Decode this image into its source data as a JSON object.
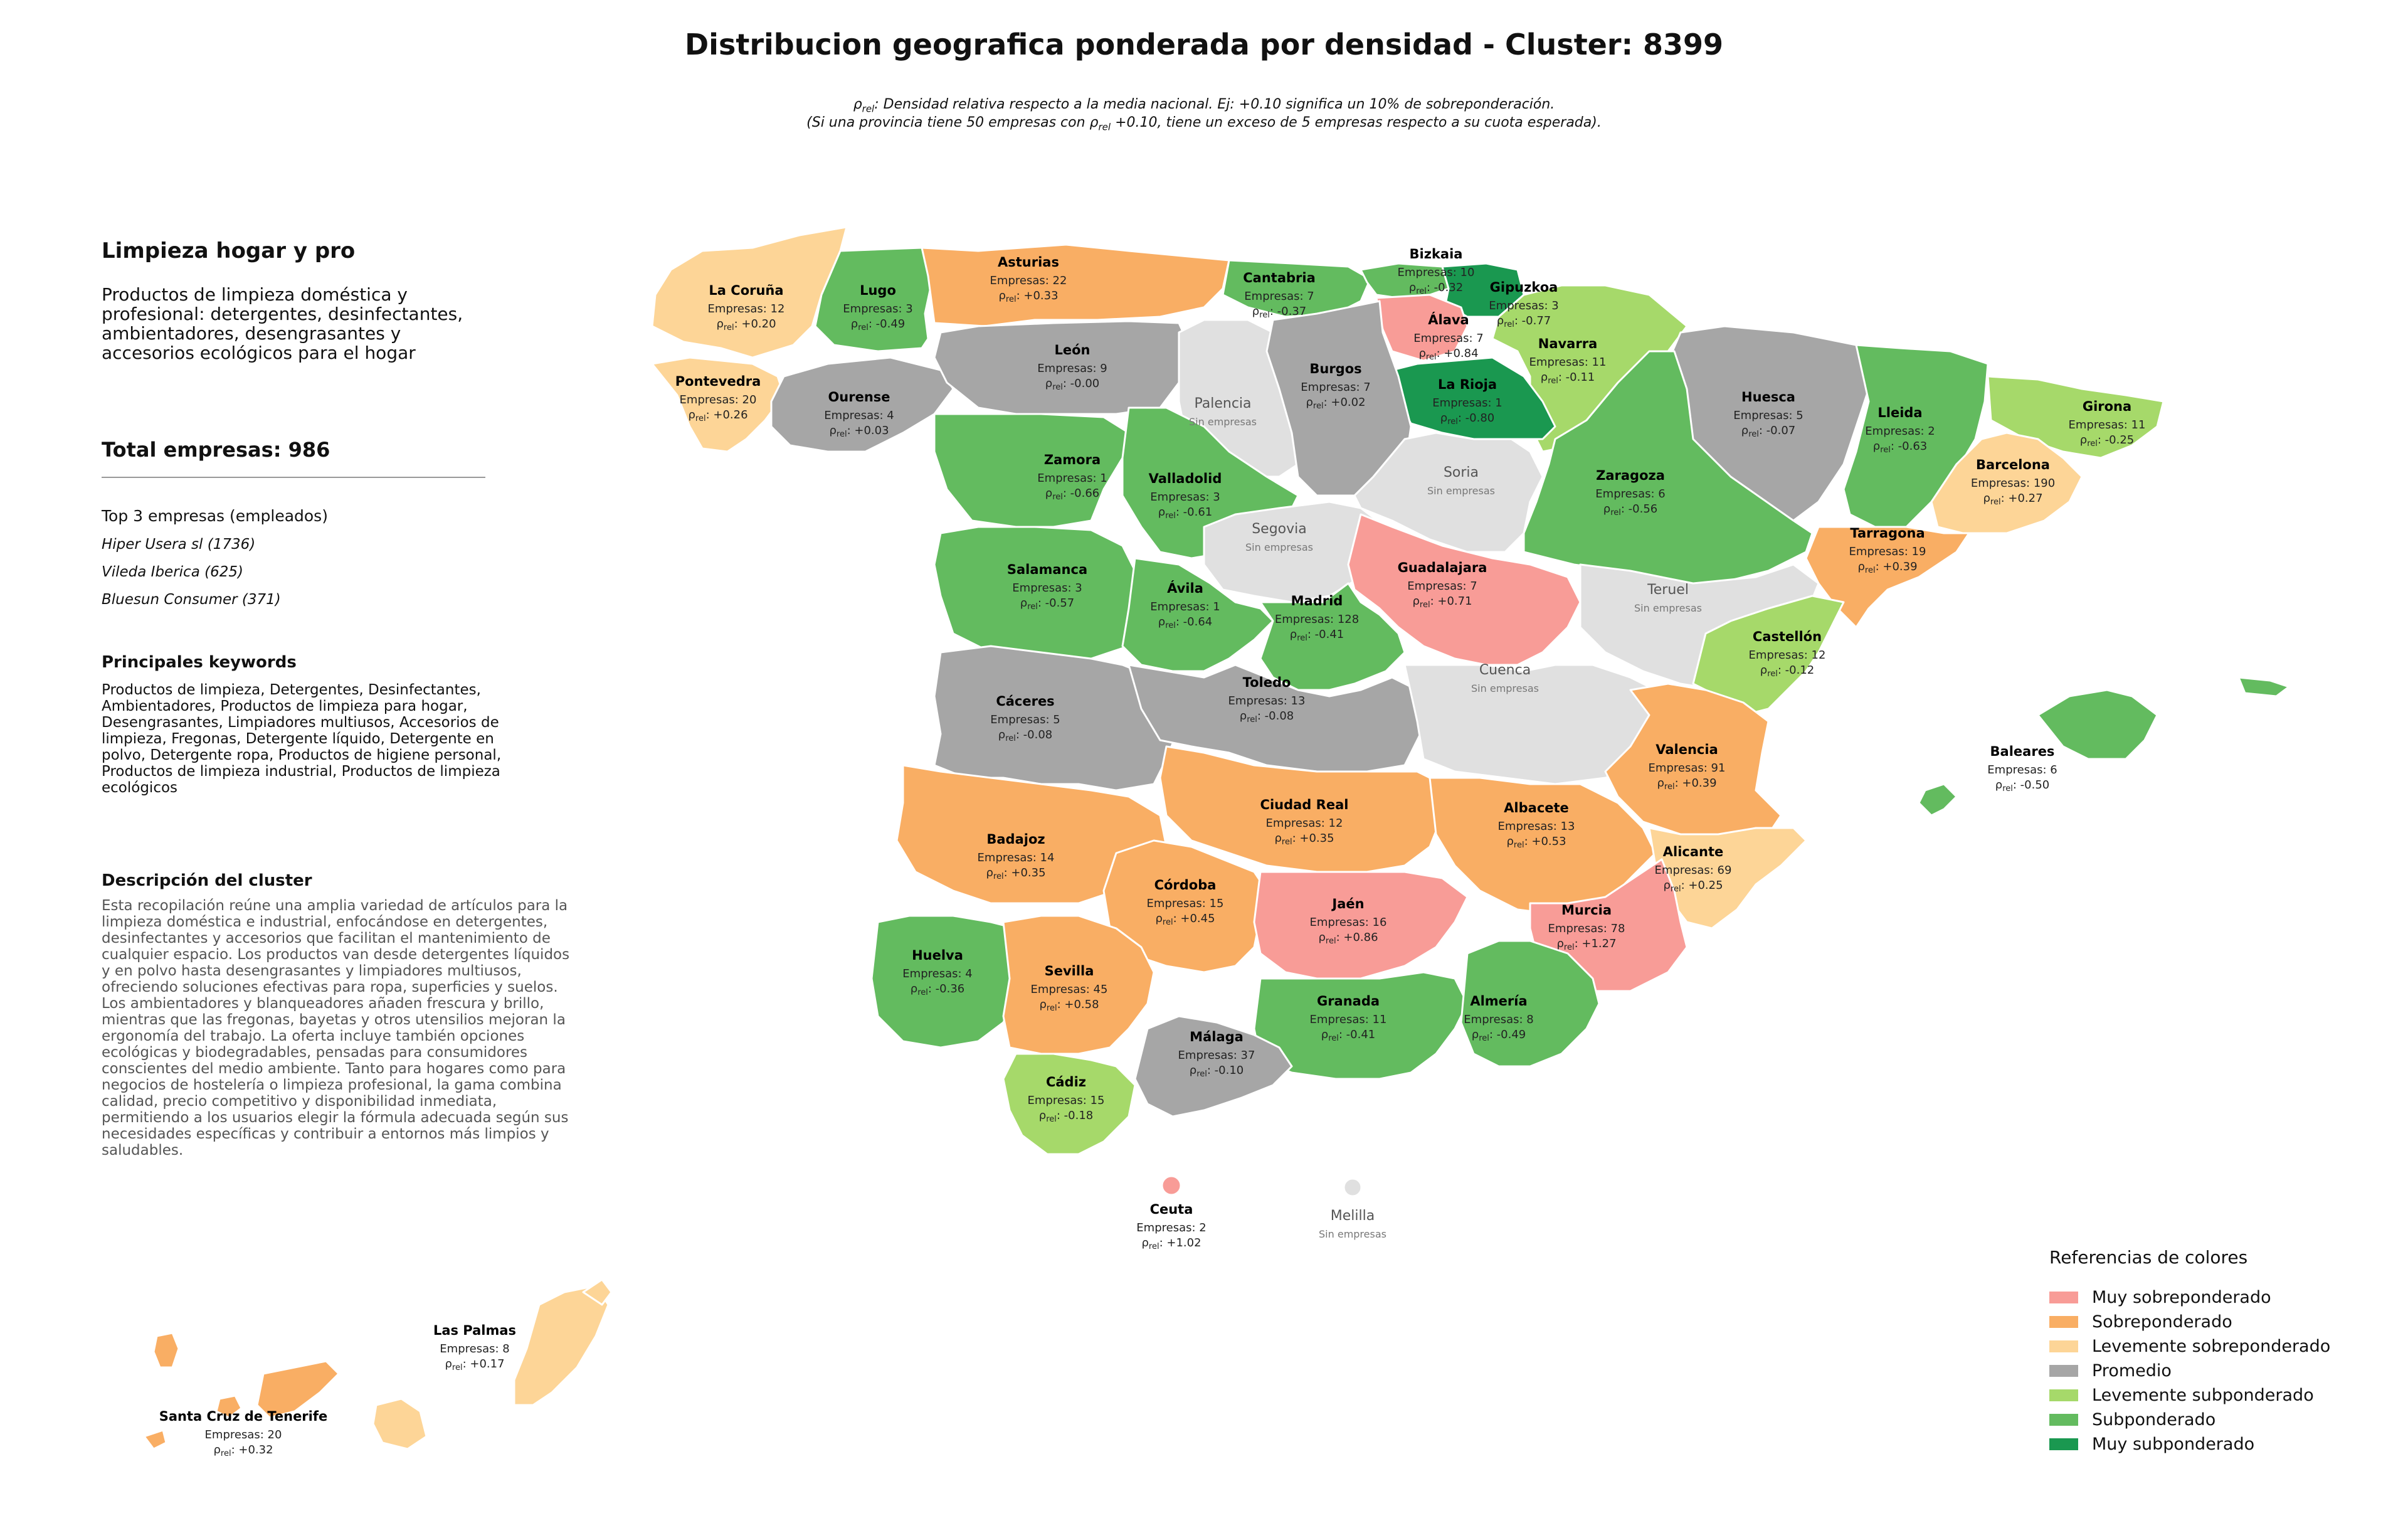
{
  "title": "Distribucion geografica ponderada por densidad - Cluster: 8399",
  "subtitle_line1": "ρrel: Densidad relativa respecto a la media nacional. Ej: +0.10 significa un 10% de sobreponderación.",
  "subtitle_line2": "(Si una provincia tiene 50 empresas con ρrel +0.10, tiene un exceso de 5 empresas respecto a su cuota esperada).",
  "panel": {
    "category_title": "Limpieza hogar y pro",
    "category_description": "Productos de limpieza doméstica y profesional: detergentes, desinfectantes, ambientadores, desengrasantes y accesorios ecológicos para el hogar",
    "total": "Total empresas: 986",
    "top_title": "Top 3 empresas (empleados)",
    "top_companies": [
      "Hiper Usera sl (1736)",
      "Vileda Iberica (625)",
      "Bluesun Consumer (371)"
    ],
    "keywords_title": "Principales keywords",
    "keywords": "Productos de limpieza, Detergentes, Desinfectantes, Ambientadores, Productos de limpieza para hogar, Desengrasantes, Limpiadores multiusos, Accesorios de limpieza, Fregonas, Detergente líquido, Detergente en polvo, Detergente ropa, Productos de higiene personal, Productos de limpieza industrial, Productos de limpieza ecológicos",
    "description_title": "Descripción del cluster",
    "description": "Esta recopilación reúne una amplia variedad de artículos para la limpieza doméstica e industrial, enfocándose en detergentes, desinfectantes y accesorios que facilitan el mantenimiento de cualquier espacio. Los productos van desde detergentes líquidos y en polvo hasta desengrasantes y limpiadores multiusos, ofreciendo soluciones efectivas para ropa, superficies y suelos. Los ambientadores y blanqueadores añaden frescura y brillo, mientras que las fregonas, bayetas y otros utensilios mejoran la ergonomía del trabajo. La oferta incluye también opciones ecológicas y biodegradables, pensadas para consumidores conscientes del medio ambiente. Tanto para hogares como para negocios de hostelería o limpieza profesional, la gama combina calidad, precio competitivo y disponibilidad inmediata, permitiendo a los usuarios elegir la fórmula adecuada según sus necesidades específicas y contribuir a entornos más limpios y saludables."
  },
  "colors": {
    "muy_sobre": "#f89c97",
    "sobre": "#f9ae64",
    "lev_sobre": "#fdd597",
    "promedio": "#a6a6a6",
    "lev_sub": "#a6d96a",
    "sub": "#63bb5f",
    "muy_sub": "#1a9850",
    "sin": "#e0e0e0"
  },
  "provinces": [
    {
      "name": "La Coruña",
      "companies": "Empresas: 12",
      "rho": "+0.20",
      "level": "lev_sobre"
    },
    {
      "name": "Lugo",
      "companies": "Empresas: 3",
      "rho": "-0.49",
      "level": "sub"
    },
    {
      "name": "Asturias",
      "companies": "Empresas: 22",
      "rho": "+0.33",
      "level": "sobre"
    },
    {
      "name": "Cantabria",
      "companies": "Empresas: 7",
      "rho": "-0.37",
      "level": "sub"
    },
    {
      "name": "Bizkaia",
      "companies": "Empresas: 10",
      "rho": "-0.32",
      "level": "sub"
    },
    {
      "name": "Gipuzkoa",
      "companies": "Empresas: 3",
      "rho": "-0.77",
      "level": "muy_sub"
    },
    {
      "name": "Álava",
      "companies": "Empresas: 7",
      "rho": "+0.84",
      "level": "muy_sobre"
    },
    {
      "name": "Navarra",
      "companies": "Empresas: 11",
      "rho": "-0.11",
      "level": "lev_sub"
    },
    {
      "name": "La Rioja",
      "companies": "Empresas: 1",
      "rho": "-0.80",
      "level": "muy_sub"
    },
    {
      "name": "Pontevedra",
      "companies": "Empresas: 20",
      "rho": "+0.26",
      "level": "lev_sobre"
    },
    {
      "name": "Ourense",
      "companies": "Empresas: 4",
      "rho": "+0.03",
      "level": "promedio"
    },
    {
      "name": "León",
      "companies": "Empresas: 9",
      "rho": "-0.00",
      "level": "promedio"
    },
    {
      "name": "Palencia",
      "companies": "Sin empresas",
      "rho": "",
      "level": "sin"
    },
    {
      "name": "Burgos",
      "companies": "Empresas: 7",
      "rho": "+0.02",
      "level": "promedio"
    },
    {
      "name": "Huesca",
      "companies": "Empresas: 5",
      "rho": "-0.07",
      "level": "promedio"
    },
    {
      "name": "Lleida",
      "companies": "Empresas: 2",
      "rho": "-0.63",
      "level": "sub"
    },
    {
      "name": "Girona",
      "companies": "Empresas: 11",
      "rho": "-0.25",
      "level": "lev_sub"
    },
    {
      "name": "Zamora",
      "companies": "Empresas: 1",
      "rho": "-0.66",
      "level": "sub"
    },
    {
      "name": "Valladolid",
      "companies": "Empresas: 3",
      "rho": "-0.61",
      "level": "sub"
    },
    {
      "name": "Soria",
      "companies": "Sin empresas",
      "rho": "",
      "level": "sin"
    },
    {
      "name": "Zaragoza",
      "companies": "Empresas: 6",
      "rho": "-0.56",
      "level": "sub"
    },
    {
      "name": "Barcelona",
      "companies": "Empresas: 190",
      "rho": "+0.27",
      "level": "lev_sobre"
    },
    {
      "name": "Segovia",
      "companies": "Sin empresas",
      "rho": "",
      "level": "sin"
    },
    {
      "name": "Salamanca",
      "companies": "Empresas: 3",
      "rho": "-0.57",
      "level": "sub"
    },
    {
      "name": "Tarragona",
      "companies": "Empresas: 19",
      "rho": "+0.39",
      "level": "sobre"
    },
    {
      "name": "Guadalajara",
      "companies": "Empresas: 7",
      "rho": "+0.71",
      "level": "muy_sobre"
    },
    {
      "name": "Teruel",
      "companies": "Sin empresas",
      "rho": "",
      "level": "sin"
    },
    {
      "name": "Ávila",
      "companies": "Empresas: 1",
      "rho": "-0.64",
      "level": "sub"
    },
    {
      "name": "Madrid",
      "companies": "Empresas: 128",
      "rho": "-0.41",
      "level": "sub"
    },
    {
      "name": "Castellón",
      "companies": "Empresas: 12",
      "rho": "-0.12",
      "level": "lev_sub"
    },
    {
      "name": "Cáceres",
      "companies": "Empresas: 5",
      "rho": "-0.08",
      "level": "promedio"
    },
    {
      "name": "Toledo",
      "companies": "Empresas: 13",
      "rho": "-0.08",
      "level": "promedio"
    },
    {
      "name": "Cuenca",
      "companies": "Sin empresas",
      "rho": "",
      "level": "sin"
    },
    {
      "name": "Valencia",
      "companies": "Empresas: 91",
      "rho": "+0.39",
      "level": "sobre"
    },
    {
      "name": "Baleares",
      "companies": "Empresas: 6",
      "rho": "-0.50",
      "level": "sub"
    },
    {
      "name": "Ciudad Real",
      "companies": "Empresas: 12",
      "rho": "+0.35",
      "level": "sobre"
    },
    {
      "name": "Albacete",
      "companies": "Empresas: 13",
      "rho": "+0.53",
      "level": "sobre"
    },
    {
      "name": "Badajoz",
      "companies": "Empresas: 14",
      "rho": "+0.35",
      "level": "sobre"
    },
    {
      "name": "Córdoba",
      "companies": "Empresas: 15",
      "rho": "+0.45",
      "level": "sobre"
    },
    {
      "name": "Alicante",
      "companies": "Empresas: 69",
      "rho": "+0.25",
      "level": "lev_sobre"
    },
    {
      "name": "Jaén",
      "companies": "Empresas: 16",
      "rho": "+0.86",
      "level": "muy_sobre"
    },
    {
      "name": "Murcia",
      "companies": "Empresas: 78",
      "rho": "+1.27",
      "level": "muy_sobre"
    },
    {
      "name": "Huelva",
      "companies": "Empresas: 4",
      "rho": "-0.36",
      "level": "sub"
    },
    {
      "name": "Sevilla",
      "companies": "Empresas: 45",
      "rho": "+0.58",
      "level": "sobre"
    },
    {
      "name": "Granada",
      "companies": "Empresas: 11",
      "rho": "-0.41",
      "level": "sub"
    },
    {
      "name": "Almería",
      "companies": "Empresas: 8",
      "rho": "-0.49",
      "level": "sub"
    },
    {
      "name": "Málaga",
      "companies": "Empresas: 37",
      "rho": "-0.10",
      "level": "promedio"
    },
    {
      "name": "Cádiz",
      "companies": "Empresas: 15",
      "rho": "-0.18",
      "level": "lev_sub"
    },
    {
      "name": "Ceuta",
      "companies": "Empresas: 2",
      "rho": "+1.02",
      "level": "muy_sobre"
    },
    {
      "name": "Melilla",
      "companies": "Sin empresas",
      "rho": "",
      "level": "sin"
    },
    {
      "name": "Las Palmas",
      "companies": "Empresas: 8",
      "rho": "+0.17",
      "level": "lev_sobre"
    },
    {
      "name": "Santa Cruz de Tenerife",
      "companies": "Empresas: 20",
      "rho": "+0.32",
      "level": "sobre"
    }
  ],
  "legend": {
    "title": "Referencias de colores",
    "items": [
      {
        "label": "Muy sobreponderado",
        "color": "#f89c97"
      },
      {
        "label": "Sobreponderado",
        "color": "#f9ae64"
      },
      {
        "label": "Levemente sobreponderado",
        "color": "#fdd597"
      },
      {
        "label": "Promedio",
        "color": "#a6a6a6"
      },
      {
        "label": "Levemente subponderado",
        "color": "#a6d96a"
      },
      {
        "label": "Subponderado",
        "color": "#63bb5f"
      },
      {
        "label": "Muy subponderado",
        "color": "#1a9850"
      }
    ]
  }
}
